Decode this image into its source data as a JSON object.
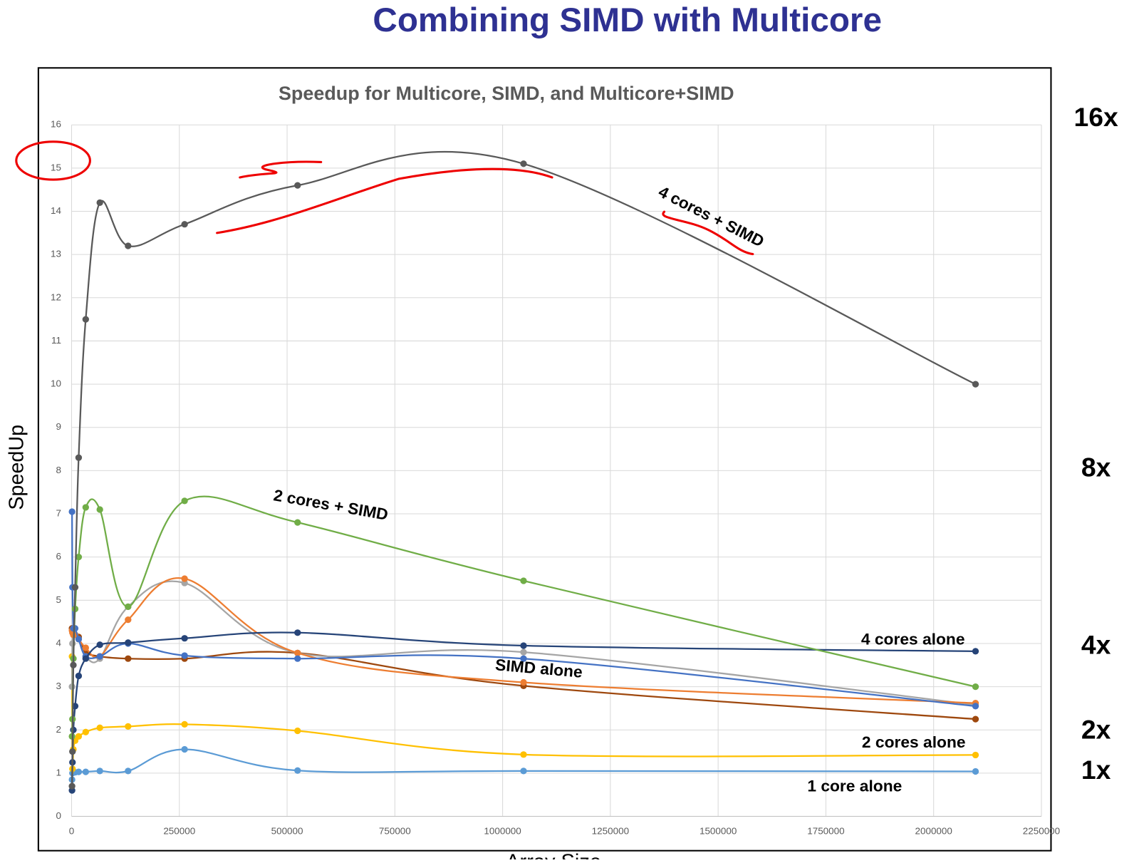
{
  "slide_title": "Combining SIMD with Multicore",
  "chart_data": {
    "type": "line",
    "title": "Speedup for Multicore, SIMD, and Multicore+SIMD",
    "x_label": "Array Size",
    "y_label": "SpeedUp",
    "smooth": true,
    "grid": true,
    "x": [
      1024,
      2048,
      4096,
      8192,
      16384,
      32768,
      65536,
      131072,
      262144,
      524288,
      1048576,
      2097152
    ],
    "xlim": [
      0,
      2250000
    ],
    "xticks": [
      0,
      250000,
      500000,
      750000,
      1000000,
      1250000,
      1500000,
      1750000,
      2000000,
      2250000
    ],
    "ylim": [
      0,
      16
    ],
    "yticks": [
      0,
      1,
      2,
      3,
      4,
      5,
      6,
      7,
      8,
      9,
      10,
      11,
      12,
      13,
      14,
      15,
      16
    ],
    "series": [
      {
        "name": "4 cores + SIMD",
        "color": "#595959",
        "values": [
          0.7,
          1.5,
          3.5,
          5.3,
          8.3,
          11.5,
          14.2,
          13.2,
          13.7,
          14.6,
          15.1,
          10.0
        ]
      },
      {
        "name": "2 cores + SIMD",
        "color": "#70ad47",
        "values": [
          1.85,
          2.25,
          3.65,
          4.8,
          6.0,
          7.15,
          7.1,
          4.85,
          7.3,
          6.8,
          5.45,
          3.0
        ]
      },
      {
        "name": "4 cores alone",
        "color": "#264478",
        "values": [
          0.6,
          1.25,
          2.0,
          2.55,
          3.25,
          3.65,
          3.97,
          4.02,
          4.12,
          4.25,
          3.95,
          3.82
        ]
      },
      {
        "color": "#4472c4",
        "values": [
          7.05,
          5.3,
          4.35,
          4.35,
          4.1,
          3.7,
          3.7,
          4.0,
          3.72,
          3.65,
          3.65,
          2.55
        ]
      },
      {
        "color": "#ed7d31",
        "values": [
          4.3,
          4.25,
          4.2,
          4.2,
          4.1,
          3.9,
          3.7,
          4.55,
          5.5,
          3.78,
          3.1,
          2.62
        ]
      },
      {
        "color": "#a5a5a5",
        "values": [
          3.0,
          4.0,
          4.2,
          4.2,
          4.1,
          3.7,
          3.65,
          4.85,
          5.4,
          3.78,
          3.8,
          2.58
        ]
      },
      {
        "name": "SIMD alone",
        "color": "#9e480e",
        "values": [
          4.35,
          4.3,
          4.25,
          4.2,
          4.15,
          3.8,
          3.7,
          3.65,
          3.65,
          3.78,
          3.02,
          2.25
        ]
      },
      {
        "name": "2 cores alone",
        "color": "#ffc000",
        "values": [
          3.7,
          1.1,
          1.55,
          1.75,
          1.85,
          1.95,
          2.05,
          2.08,
          2.13,
          1.98,
          1.43,
          1.42
        ]
      },
      {
        "name": "1 core alone",
        "color": "#5b9bd5",
        "values": [
          0.85,
          1.0,
          1.02,
          1.02,
          1.03,
          1.03,
          1.05,
          1.05,
          1.55,
          1.06,
          1.05,
          1.04
        ]
      }
    ],
    "side_labels": [
      "16x",
      "8x",
      "4x",
      "2x",
      "1x"
    ]
  }
}
